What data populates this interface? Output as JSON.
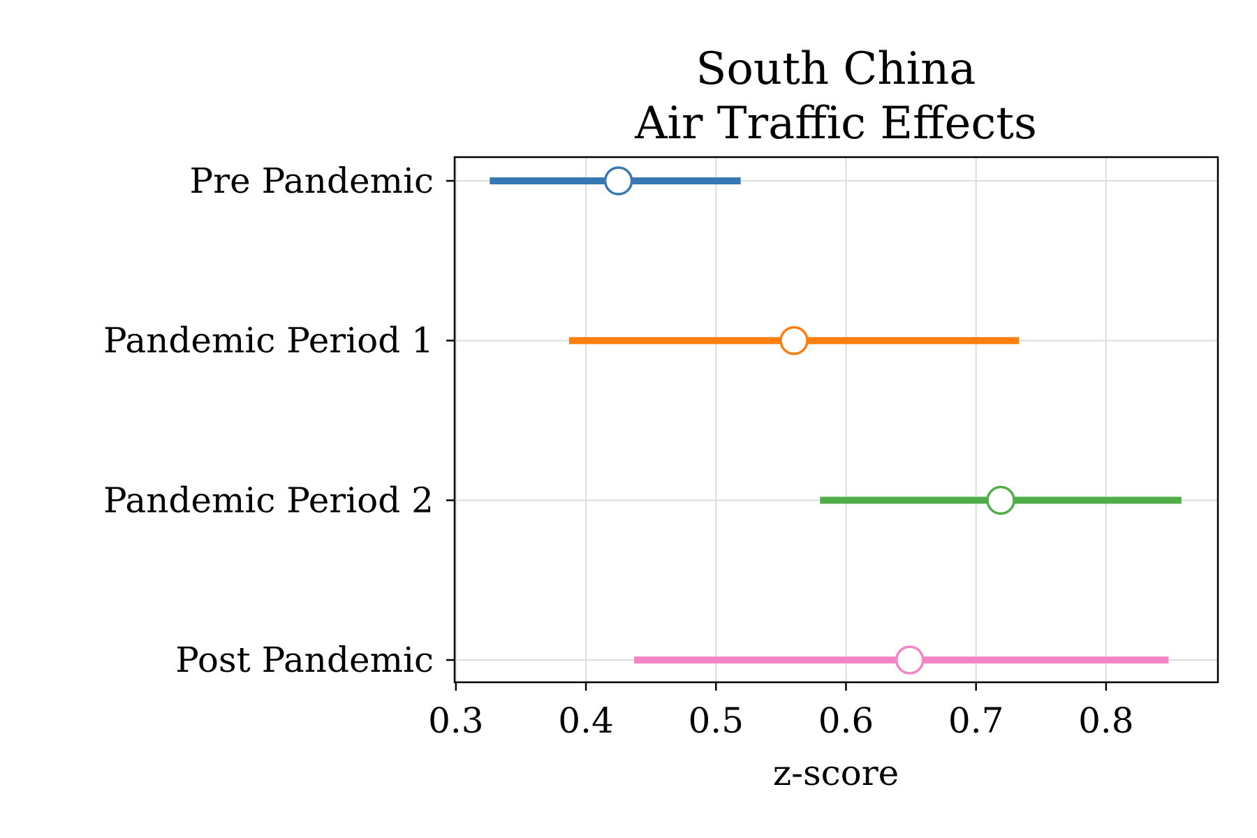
{
  "chart_data": {
    "type": "forest",
    "title": [
      "South China",
      "Air Traffic Effects"
    ],
    "xlabel": "z-score",
    "ylabel": "",
    "xlim": [
      0.299,
      0.886
    ],
    "x_ticks": [
      0.3,
      0.4,
      0.5,
      0.6,
      0.7,
      0.8
    ],
    "x_tick_labels": [
      "0.3",
      "0.4",
      "0.5",
      "0.6",
      "0.7",
      "0.8"
    ],
    "grid": true,
    "categories": [
      "Pre Pandemic",
      "Pandemic Period 1",
      "Pandemic Period 2",
      "Post Pandemic"
    ],
    "series": [
      {
        "category": "Pre Pandemic",
        "estimate": 0.425,
        "lower": 0.326,
        "upper": 0.519,
        "color": "#3778b4"
      },
      {
        "category": "Pandemic Period 1",
        "estimate": 0.56,
        "lower": 0.387,
        "upper": 0.733,
        "color": "#ff7f0e"
      },
      {
        "category": "Pandemic Period 2",
        "estimate": 0.719,
        "lower": 0.58,
        "upper": 0.858,
        "color": "#4fae4a"
      },
      {
        "category": "Post Pandemic",
        "estimate": 0.649,
        "lower": 0.437,
        "upper": 0.848,
        "color": "#f584c5"
      }
    ]
  }
}
